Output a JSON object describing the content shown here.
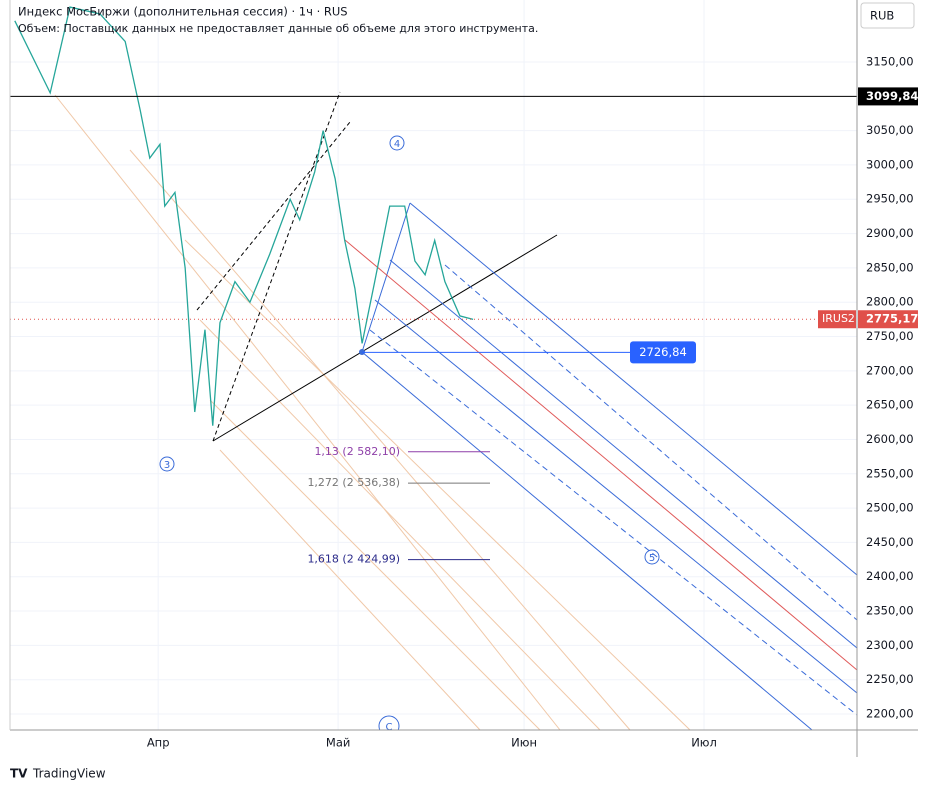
{
  "chart_data": {
    "type": "line",
    "title": "Индекс МосБиржи (дополнительная сессия) · 1ч · RUS",
    "subtitle": "Объем: Поставщик данных не предоставляет данные об объеме для этого инструмента.",
    "currency": "RUB",
    "brand": "TradingView",
    "xlim": [
      -2.7,
      138.5
    ],
    "xticks": [
      {
        "value": 22,
        "label": "Апр"
      },
      {
        "value": 52,
        "label": "Май"
      },
      {
        "value": 83,
        "label": "Июн"
      },
      {
        "value": 113,
        "label": "Июл"
      }
    ],
    "ylim": [
      2176.7,
      3240.3
    ],
    "yticks": [
      {
        "value": 3150,
        "label": "3150,00"
      },
      {
        "value": 3050,
        "label": "3050,00"
      },
      {
        "value": 3000,
        "label": "3000,00"
      },
      {
        "value": 2950,
        "label": "2950,00"
      },
      {
        "value": 2900,
        "label": "2900,00"
      },
      {
        "value": 2850,
        "label": "2850,00"
      },
      {
        "value": 2800,
        "label": "2800,00"
      },
      {
        "value": 2750,
        "label": "2750,00"
      },
      {
        "value": 2700,
        "label": "2700,00"
      },
      {
        "value": 2650,
        "label": "2650,00"
      },
      {
        "value": 2600,
        "label": "2600,00"
      },
      {
        "value": 2550,
        "label": "2550,00"
      },
      {
        "value": 2500,
        "label": "2500,00"
      },
      {
        "value": 2450,
        "label": "2450,00"
      },
      {
        "value": 2400,
        "label": "2400,00"
      },
      {
        "value": 2350,
        "label": "2350,00"
      },
      {
        "value": 2300,
        "label": "2300,00"
      },
      {
        "value": 2250,
        "label": "2250,00"
      },
      {
        "value": 2200,
        "label": "2200,00"
      }
    ],
    "grid": true,
    "series": [
      {
        "name": "IRUS2",
        "color": "#26a69a",
        "x": [
          -1.9,
          4.0,
          7.3,
          12.3,
          16.5,
          19.0,
          20.6,
          22.3,
          23.1,
          24.8,
          26.5,
          28.1,
          29.8,
          31.1,
          32.3,
          34.8,
          37.3,
          40.6,
          44.0,
          45.6,
          48.1,
          49.5,
          51.5,
          53.1,
          54.8,
          56.0,
          58.1,
          60.6,
          63.1,
          64.8,
          66.5,
          68.1,
          69.8,
          72.3,
          74.5
        ],
        "values": [
          3210,
          3105,
          3230,
          3220,
          3180,
          3080,
          3010,
          3030,
          2940,
          2960,
          2850,
          2640,
          2760,
          2620,
          2770,
          2830,
          2800,
          2870,
          2950,
          2920,
          2990,
          3050,
          2980,
          2890,
          2820,
          2740,
          2830,
          2940,
          2940,
          2860,
          2840,
          2890,
          2830,
          2780,
          2775
        ]
      }
    ],
    "levels": [
      {
        "value": 3099.84,
        "label": "3099,84",
        "color": "#000000"
      },
      {
        "value": 2775.17,
        "label": "2775,17",
        "name": "IRUS2",
        "color": "#e0504a"
      },
      {
        "value": 2726.84,
        "label": "2726,84",
        "color": "#2962ff"
      }
    ],
    "fib_levels": [
      {
        "value": 2582.1,
        "label": "1,13 (2 582,10)",
        "color": "#8e3fa8"
      },
      {
        "value": 2536.38,
        "label": "1,272 (2 536,38)",
        "color": "#777777"
      },
      {
        "value": 2424.99,
        "label": "1,618 (2 424,99)",
        "color": "#2a2a8a"
      }
    ],
    "waves": [
      "3",
      "4",
      "5",
      "C"
    ]
  }
}
